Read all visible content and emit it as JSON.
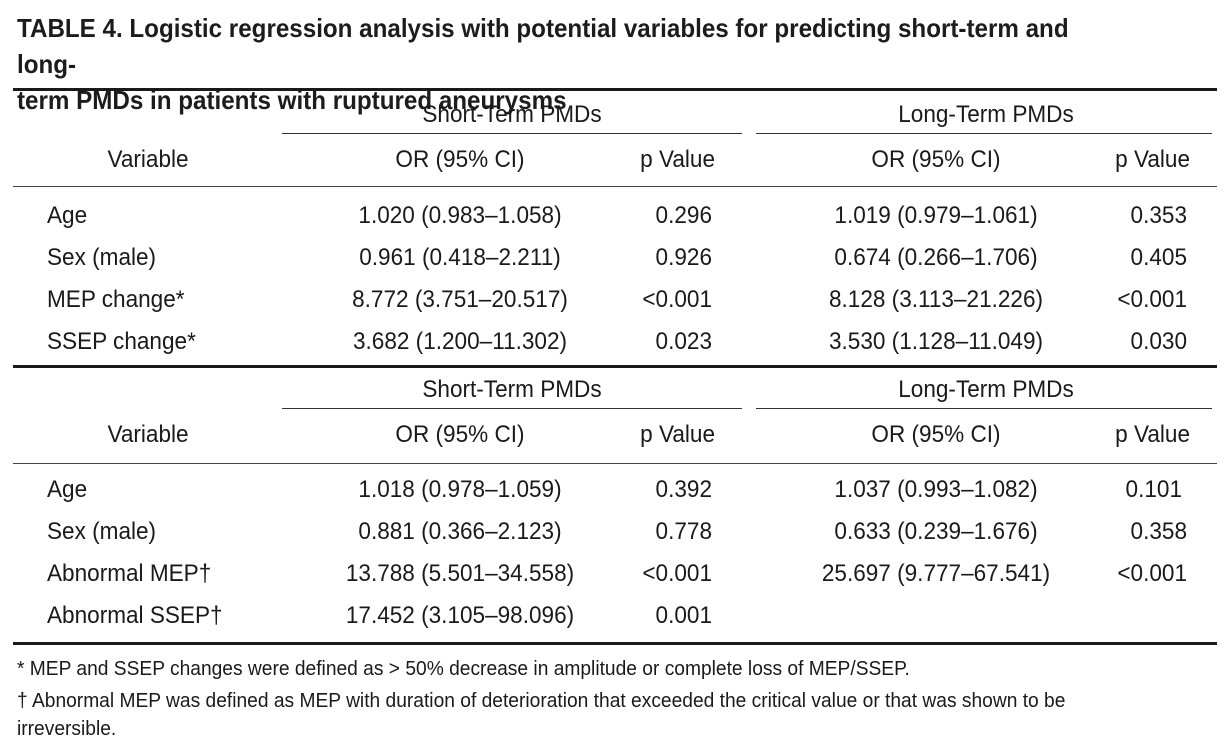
{
  "title": "TABLE 4. Logistic regression analysis with potential variables for predicting short-term and long-term PMDs in patients with ruptured aneurysms",
  "title_line1": "TABLE 4. Logistic regression analysis with potential variables for predicting short-term and long-",
  "title_line2": "term PMDs in patients with ruptured aneurysms",
  "blocks": [
    {
      "group_headers": {
        "short": "Short-Term PMDs",
        "long": "Long-Term PMDs"
      },
      "col_headers": {
        "variable": "Variable",
        "or_short": "OR (95% CI)",
        "p_short": "p Value",
        "or_long": "OR (95% CI)",
        "p_long": "p Value"
      },
      "rows": [
        {
          "variable": "Age",
          "or_short": "1.020 (0.983–1.058)",
          "p_short": "0.296",
          "or_long": "1.019 (0.979–1.061)",
          "p_long": "0.353"
        },
        {
          "variable": "Sex (male)",
          "or_short": "0.961 (0.418–2.211)",
          "p_short": "0.926",
          "or_long": "0.674 (0.266–1.706)",
          "p_long": "0.405"
        },
        {
          "variable": "MEP change*",
          "or_short": "8.772 (3.751–20.517)",
          "p_short": "<0.001",
          "or_long": "8.128 (3.113–21.226)",
          "p_long": "<0.001"
        },
        {
          "variable": "SSEP change*",
          "or_short": "3.682 (1.200–11.302)",
          "p_short": "0.023",
          "or_long": "3.530 (1.128–11.049)",
          "p_long": "0.030"
        }
      ]
    },
    {
      "group_headers": {
        "short": "Short-Term PMDs",
        "long": "Long-Term PMDs"
      },
      "col_headers": {
        "variable": "Variable",
        "or_short": "OR (95% CI)",
        "p_short": "p Value",
        "or_long": "OR (95% CI)",
        "p_long": "p Value"
      },
      "rows": [
        {
          "variable": "Age",
          "or_short": "1.018 (0.978–1.059)",
          "p_short": "0.392",
          "or_long": "1.037 (0.993–1.082)",
          "p_long": "0.101"
        },
        {
          "variable": "Sex (male)",
          "or_short": "0.881 (0.366–2.123)",
          "p_short": "0.778",
          "or_long": "0.633 (0.239–1.676)",
          "p_long": "0.358"
        },
        {
          "variable": "Abnormal MEP†",
          "or_short": "13.788 (5.501–34.558)",
          "p_short": "<0.001",
          "or_long": "25.697 (9.777–67.541)",
          "p_long": "<0.001"
        },
        {
          "variable": "Abnormal SSEP†",
          "or_short": "17.452 (3.105–98.096)",
          "p_short": "0.001",
          "or_long": "",
          "p_long": ""
        }
      ]
    }
  ],
  "footnotes": {
    "star": "* MEP and SSEP changes were defined as > 50% decrease in amplitude or complete loss of MEP/SSEP.",
    "dagger": "† Abnormal MEP was defined as MEP with duration of deterioration that exceeded the critical value or that was shown to be irreversible."
  }
}
